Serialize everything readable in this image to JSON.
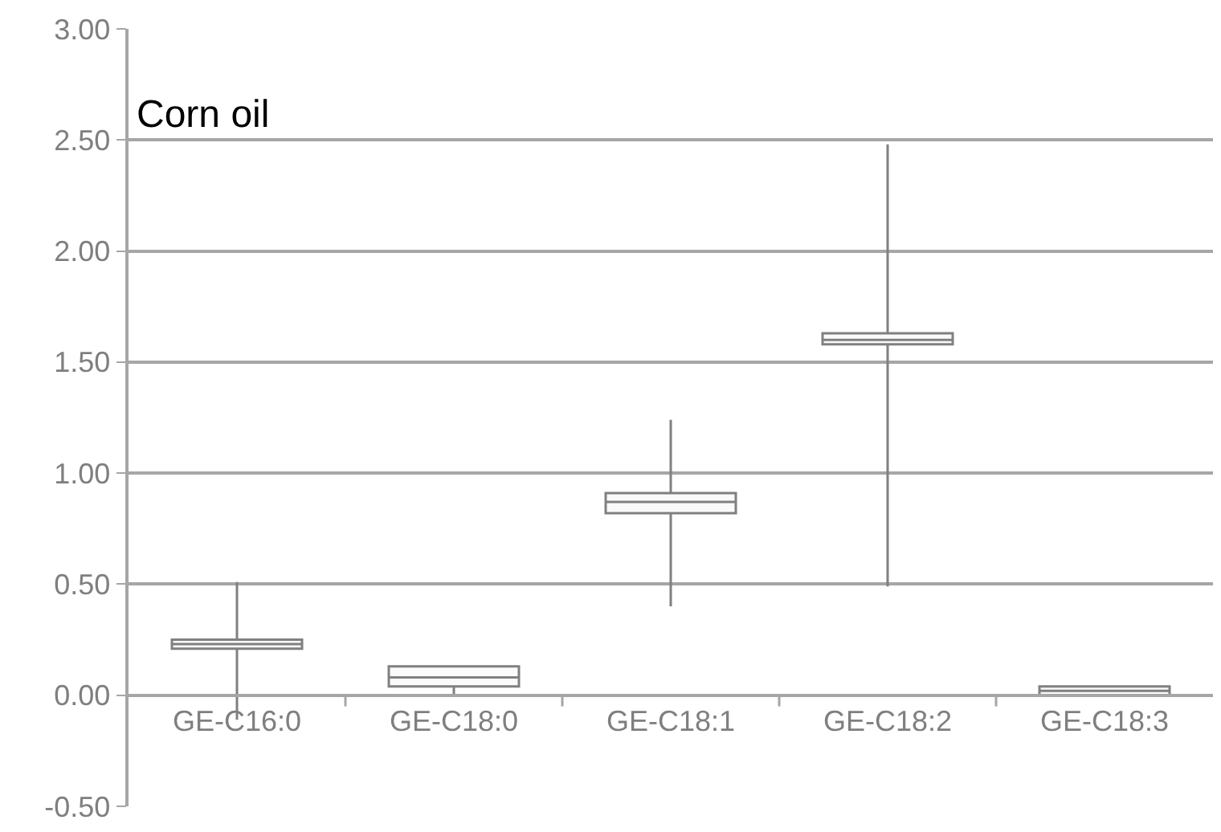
{
  "chart_data": {
    "type": "box",
    "title": "Corn oil",
    "categories": [
      "GE-C16:0",
      "GE-C18:0",
      "GE-C18:1",
      "GE-C18:2",
      "GE-C18:3"
    ],
    "boxes": [
      {
        "low": -0.11,
        "q1": 0.21,
        "median": 0.23,
        "q3": 0.25,
        "high": 0.51
      },
      {
        "low": 0.0,
        "q1": 0.04,
        "median": 0.08,
        "q3": 0.13,
        "high": 0.13
      },
      {
        "low": 0.4,
        "q1": 0.82,
        "median": 0.87,
        "q3": 0.91,
        "high": 1.24
      },
      {
        "low": 0.49,
        "q1": 1.58,
        "median": 1.6,
        "q3": 1.63,
        "high": 2.48
      },
      {
        "low": 0.0,
        "q1": 0.0,
        "median": 0.02,
        "q3": 0.04,
        "high": 0.04
      }
    ],
    "color": "#808080",
    "ylim": [
      -0.5,
      3.0
    ],
    "yticks": [
      {
        "value": -0.5,
        "label": "-0.50"
      },
      {
        "value": 0,
        "label": "0.00"
      },
      {
        "value": 0.5,
        "label": "0.50"
      },
      {
        "value": 1.0,
        "label": "1.00"
      },
      {
        "value": 1.5,
        "label": "1.50"
      },
      {
        "value": 2.0,
        "label": "2.00"
      },
      {
        "value": 2.5,
        "label": "2.50"
      },
      {
        "value": 3.0,
        "label": "3.00"
      }
    ],
    "grid": "y"
  }
}
